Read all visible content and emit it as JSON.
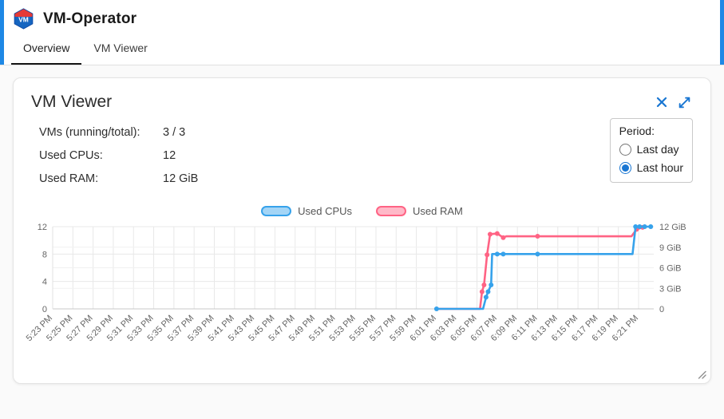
{
  "header": {
    "title": "VM-Operator",
    "logo_text": "VM"
  },
  "tabs": [
    {
      "label": "Overview",
      "active": true
    },
    {
      "label": "VM Viewer",
      "active": false
    }
  ],
  "icons": {
    "close": "✕",
    "expand": "⤢",
    "resize_handle": "⟋"
  },
  "colors": {
    "accent": "#1e88e5",
    "icon_blue": "#1976d2",
    "cpu_line": "#36a2eb",
    "ram_line": "#ff6384"
  },
  "card": {
    "title": "VM Viewer",
    "stats": [
      {
        "label": "VMs (running/total):",
        "value": "3 / 3"
      },
      {
        "label": "Used CPUs:",
        "value": "12"
      },
      {
        "label": "Used RAM:",
        "value": "12 GiB"
      }
    ],
    "period": {
      "label": "Period:",
      "options": [
        {
          "label": "Last day",
          "selected": false
        },
        {
          "label": "Last hour",
          "selected": true
        }
      ]
    }
  },
  "chart_data": {
    "type": "line",
    "title": "",
    "legend_position": "top",
    "grid": true,
    "x_labels": [
      "5:23 PM",
      "5:25 PM",
      "5:27 PM",
      "5:29 PM",
      "5:31 PM",
      "5:33 PM",
      "5:35 PM",
      "5:37 PM",
      "5:39 PM",
      "5:41 PM",
      "5:43 PM",
      "5:45 PM",
      "5:47 PM",
      "5:49 PM",
      "5:51 PM",
      "5:53 PM",
      "5:55 PM",
      "5:57 PM",
      "5:59 PM",
      "6:01 PM",
      "6:03 PM",
      "6:05 PM",
      "6:07 PM",
      "6:09 PM",
      "6:11 PM",
      "6:13 PM",
      "6:15 PM",
      "6:17 PM",
      "6:19 PM",
      "6:21 PM"
    ],
    "x_tick_step_minutes": 2,
    "x_domain_minutes": [
      0,
      59.5
    ],
    "left_axis": {
      "ticks": [
        0,
        4,
        8,
        12
      ],
      "range": [
        0,
        12
      ]
    },
    "right_axis": {
      "range": [
        0,
        12
      ],
      "ticks": [
        {
          "value": 0,
          "label": "0"
        },
        {
          "value": 3,
          "label": "3 GiB"
        },
        {
          "value": 6,
          "label": "6 GiB"
        },
        {
          "value": 9,
          "label": "9 GiB"
        },
        {
          "value": 12,
          "label": "12 GiB"
        }
      ]
    },
    "series": [
      {
        "name": "Used CPUs",
        "color": "#36a2eb",
        "fill": "rgba(54,162,235,0.45)",
        "axis": "left",
        "line": [
          [
            38,
            0
          ],
          [
            42.6,
            0
          ],
          [
            42.9,
            1.7
          ],
          [
            43.1,
            2.5
          ],
          [
            43.4,
            3.5
          ],
          [
            43.5,
            8
          ],
          [
            44.6,
            8
          ],
          [
            48,
            8
          ],
          [
            57.4,
            8
          ],
          [
            57.7,
            12
          ],
          [
            58.1,
            12
          ],
          [
            58.6,
            12
          ],
          [
            59.2,
            12
          ]
        ],
        "dots": [
          [
            38,
            0
          ],
          [
            42.9,
            1.7
          ],
          [
            43.1,
            2.5
          ],
          [
            43.4,
            3.5
          ],
          [
            44.0,
            8
          ],
          [
            44.6,
            8
          ],
          [
            48,
            8
          ],
          [
            57.7,
            12
          ],
          [
            58.1,
            12
          ],
          [
            58.6,
            12
          ],
          [
            59.2,
            12
          ]
        ]
      },
      {
        "name": "Used RAM",
        "color": "#ff6384",
        "fill": "rgba(255,99,132,0.45)",
        "axis": "right",
        "line": [
          [
            38,
            0
          ],
          [
            42.3,
            0
          ],
          [
            42.5,
            2.5
          ],
          [
            42.7,
            3.5
          ],
          [
            43.0,
            7.9
          ],
          [
            43.3,
            10.9
          ],
          [
            44.0,
            11.0
          ],
          [
            44.6,
            10.4
          ],
          [
            44.9,
            10.6
          ],
          [
            48,
            10.6
          ],
          [
            57.3,
            10.6
          ],
          [
            57.8,
            11.6
          ],
          [
            58.4,
            11.9
          ]
        ],
        "dots": [
          [
            42.5,
            2.5
          ],
          [
            42.7,
            3.5
          ],
          [
            43.0,
            7.9
          ],
          [
            43.3,
            10.9
          ],
          [
            44.0,
            11.0
          ],
          [
            44.6,
            10.4
          ],
          [
            48,
            10.6
          ],
          [
            57.8,
            11.6
          ],
          [
            58.4,
            11.9
          ]
        ]
      }
    ]
  }
}
